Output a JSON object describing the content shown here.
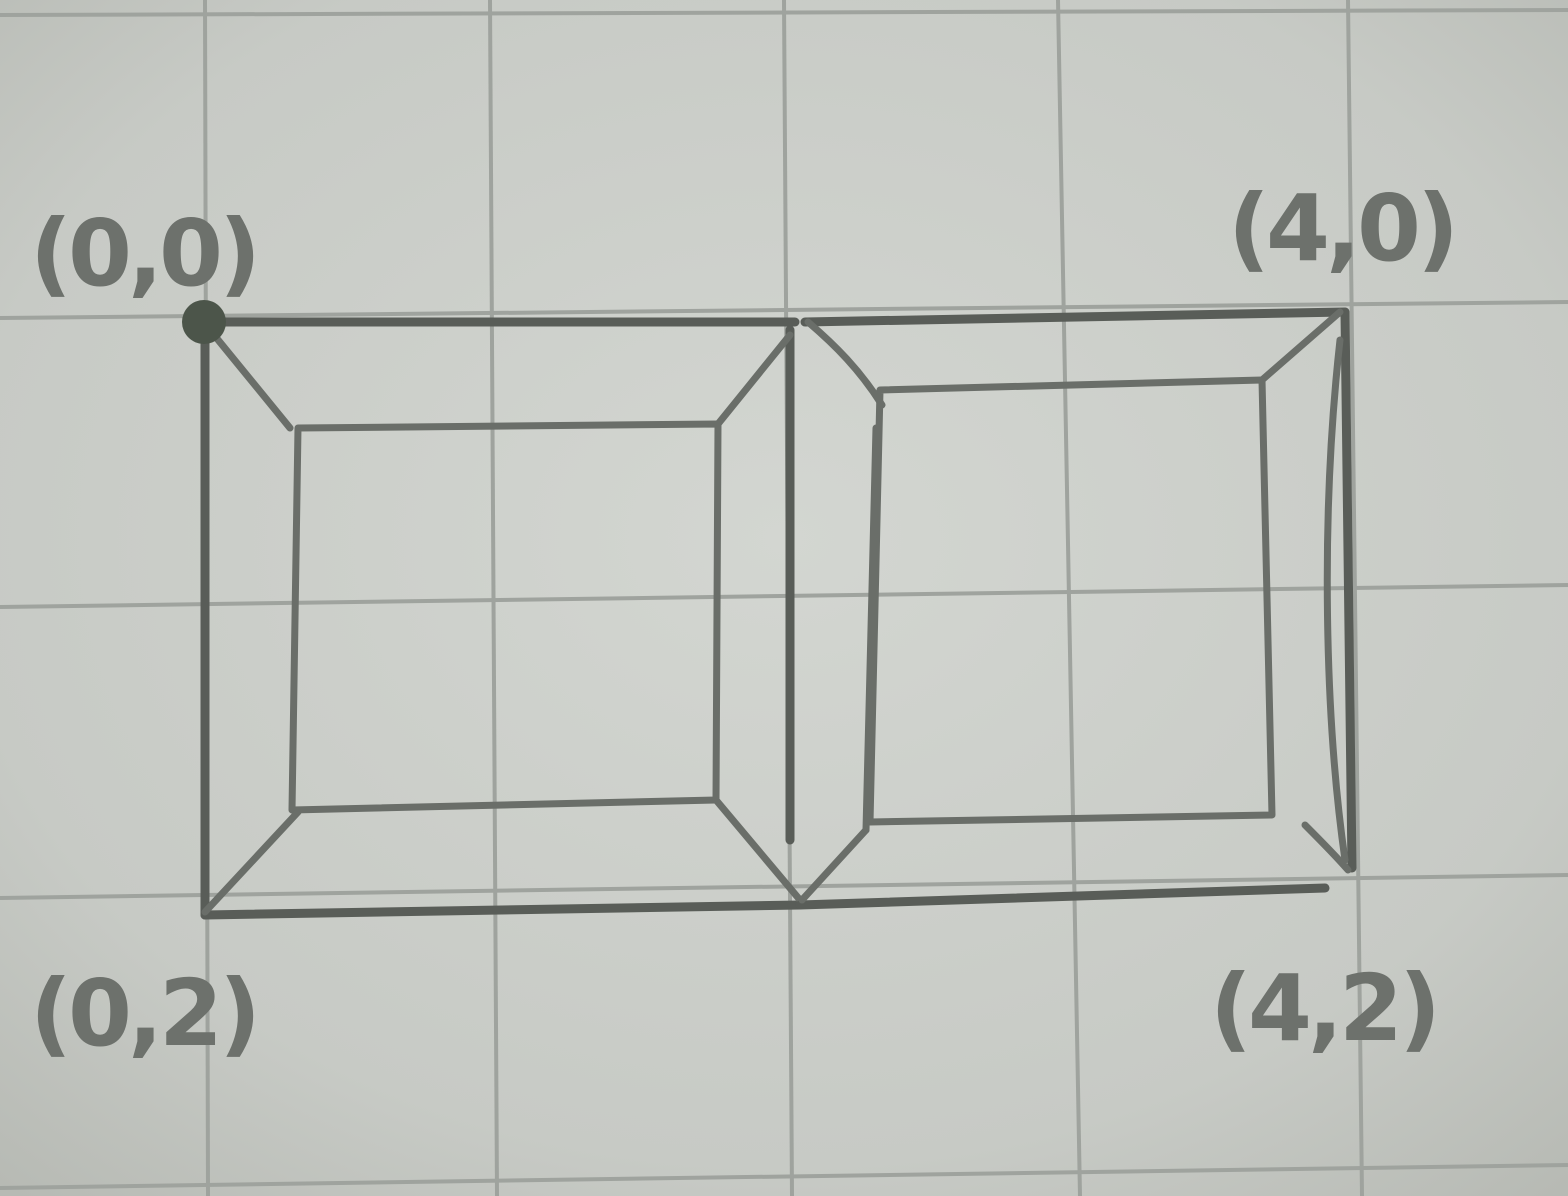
{
  "diagram": {
    "labels": {
      "top_left": "(0,0)",
      "top_right": "(4,0)",
      "bottom_left": "(0,2)",
      "bottom_right": "(4,2)"
    },
    "colors": {
      "paper": "#c9ccc7",
      "grid": "#9fa39e",
      "pencil": "#595d58",
      "label": "#6d716c"
    }
  }
}
